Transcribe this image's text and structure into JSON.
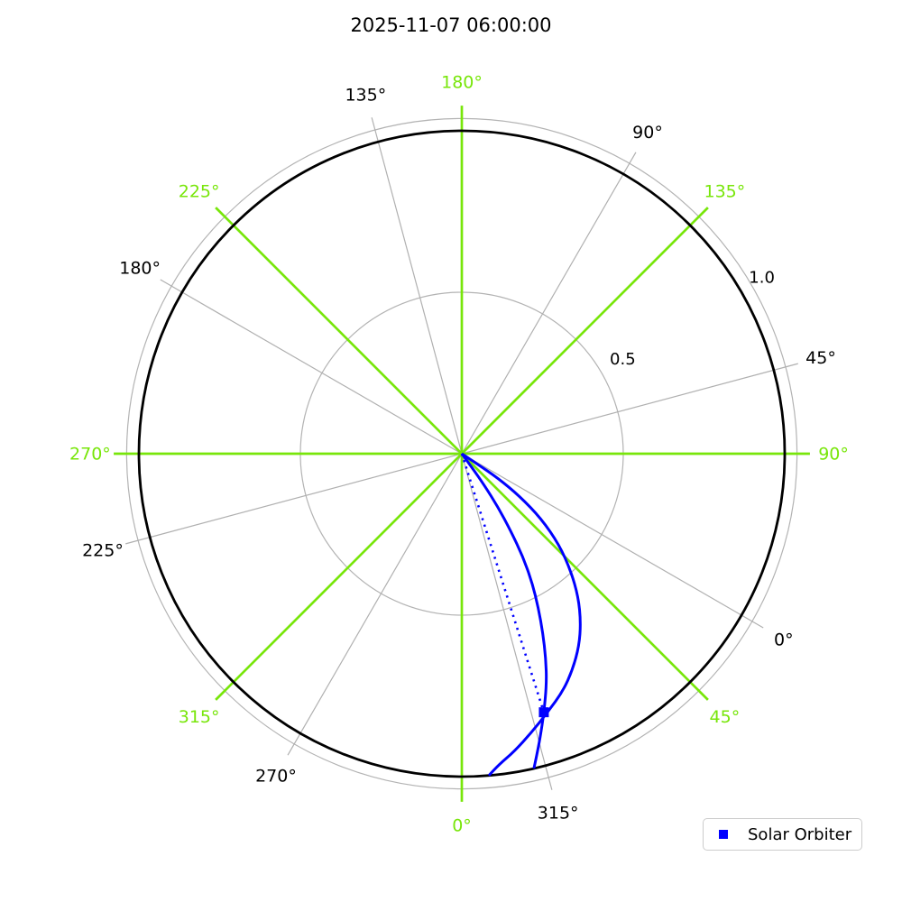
{
  "title": "2025-11-07 06:00:00",
  "legend": {
    "label": "Solar Orbiter"
  },
  "colors": {
    "earth_grid_green": "#78E60A",
    "carrington_grid_gray": "#b0b0b0",
    "carrington_label_black": "#000000",
    "grid_circle_gray": "#b3b3b3",
    "orbit_circle_black": "#000000",
    "series_blue": "#0000ff",
    "legend_border": "#cccccc"
  },
  "chart_data": {
    "type": "line",
    "projection": "polar",
    "title": "2025-11-07 06:00:00",
    "r_axis": {
      "ticks": [
        0.5,
        1.0
      ],
      "tick_labels": [
        "0.5",
        "1.0"
      ],
      "rmax": 1.038,
      "label_angle_screen_deg": 30.5
    },
    "grid": {
      "inner_circle_r": 0.5,
      "boundary_circle_r": 1.038,
      "orbit_circle_r": 1.0,
      "spoke_extent_r": 1.078,
      "label_radius_r": 1.151
    },
    "theta_axes": [
      {
        "name": "earth-longitude",
        "grid_color": "#78E60A",
        "label_color": "#78E60A",
        "offset_deg": 0,
        "tick_step_deg": 45,
        "labels": [
          "0°",
          "45°",
          "90°",
          "135°",
          "180°",
          "225°",
          "270°",
          "315°"
        ]
      },
      {
        "name": "carrington-longitude",
        "grid_color": "#b0b0b0",
        "label_color": "#000000",
        "offset_deg": 60,
        "tick_step_deg": 45,
        "labels": [
          "0°",
          "45°",
          "90°",
          "135°",
          "180°",
          "225°",
          "270°",
          "315°"
        ]
      }
    ],
    "series": [
      {
        "name": "Solar Orbiter",
        "kind": "marker",
        "marker": "square",
        "marker_size": 11,
        "color": "#0000ff",
        "r": 0.84,
        "theta_deg": 17.6
      },
      {
        "name": "sun-spacecraft line",
        "kind": "line",
        "style": "dotted",
        "color": "#0000ff",
        "points": [
          [
            0.0,
            17.6
          ],
          [
            0.84,
            17.6
          ]
        ]
      },
      {
        "name": "parker spiral through spacecraft",
        "kind": "curve",
        "style": "solid",
        "color": "#0000ff",
        "points": [
          [
            0.0,
            37.0
          ],
          [
            0.05,
            36.3
          ],
          [
            0.12,
            35.5
          ],
          [
            0.2,
            34.1
          ],
          [
            0.28,
            32.4
          ],
          [
            0.37,
            30.7
          ],
          [
            0.455,
            28.6
          ],
          [
            0.533,
            26.4
          ],
          [
            0.61,
            24.3
          ],
          [
            0.685,
            22.3
          ],
          [
            0.757,
            20.3
          ],
          [
            0.841,
            17.6
          ],
          [
            0.913,
            15.4
          ],
          [
            0.964,
            13.9
          ],
          [
            1.0,
            12.9
          ]
        ]
      },
      {
        "name": "parker spiral outer",
        "kind": "curve",
        "style": "solid",
        "color": "#0000ff",
        "points": [
          [
            0.0,
            56.5
          ],
          [
            0.06,
            56.3
          ],
          [
            0.135,
            55.9
          ],
          [
            0.222,
            53.7
          ],
          [
            0.318,
            50.7
          ],
          [
            0.413,
            46.9
          ],
          [
            0.496,
            42.9
          ],
          [
            0.572,
            39.1
          ],
          [
            0.639,
            35.2
          ],
          [
            0.697,
            31.4
          ],
          [
            0.751,
            27.2
          ],
          [
            0.799,
            23.1
          ],
          [
            0.844,
            18.3
          ],
          [
            0.89,
            14.0
          ],
          [
            0.936,
            10.0
          ],
          [
            0.97,
            6.8
          ],
          [
            1.0,
            4.8
          ]
        ]
      }
    ],
    "legend": {
      "entries": [
        "Solar Orbiter"
      ],
      "location": "lower right"
    }
  }
}
